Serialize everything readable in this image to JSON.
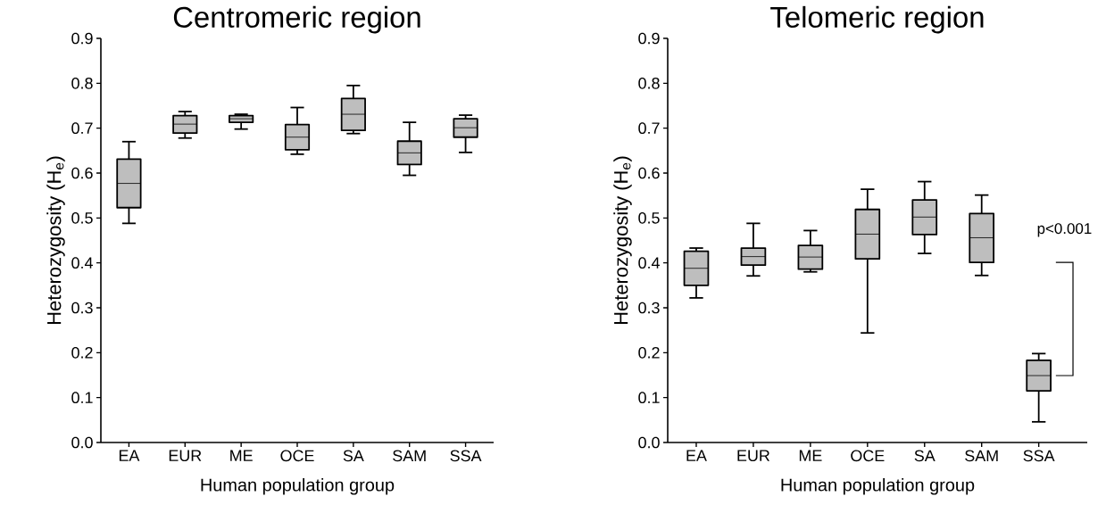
{
  "chart_data": [
    {
      "type": "box",
      "title": "Centromeric region",
      "xlabel": "Human population group",
      "ylabel": "Heterozygosity (H$_{e}$)",
      "categories": [
        "EA",
        "EUR",
        "ME",
        "OCE",
        "SA",
        "SAM",
        "SSA"
      ],
      "ylim": [
        0,
        0.9
      ],
      "yticks": [
        {
          "value": 0,
          "label": "0.0"
        },
        0.1,
        0.2,
        0.3,
        0.4,
        0.5,
        0.6,
        0.7,
        0.8,
        0.9
      ],
      "series": [
        {
          "color": "#bebebe",
          "boxes": [
            {
              "low": 0.488,
              "q1": 0.523,
              "median": 0.577,
              "q3": 0.631,
              "high": 0.67
            },
            {
              "low": 0.678,
              "q1": 0.689,
              "median": 0.709,
              "q3": 0.728,
              "high": 0.737
            },
            {
              "low": 0.698,
              "q1": 0.713,
              "median": 0.721,
              "q3": 0.728,
              "high": 0.731
            },
            {
              "low": 0.642,
              "q1": 0.652,
              "median": 0.68,
              "q3": 0.708,
              "high": 0.746
            },
            {
              "low": 0.688,
              "q1": 0.695,
              "median": 0.731,
              "q3": 0.766,
              "high": 0.795
            },
            {
              "low": 0.595,
              "q1": 0.619,
              "median": 0.645,
              "q3": 0.671,
              "high": 0.713
            },
            {
              "low": 0.646,
              "q1": 0.68,
              "median": 0.701,
              "q3": 0.721,
              "high": 0.729
            }
          ]
        }
      ]
    },
    {
      "type": "box",
      "title": "Telomeric region",
      "xlabel": "Human population group",
      "ylabel": "Heterozygosity (H$_{e}$)",
      "categories": [
        "EA",
        "EUR",
        "ME",
        "OCE",
        "SA",
        "SAM",
        "SSA"
      ],
      "ylim": [
        0,
        0.9
      ],
      "yticks": [
        {
          "value": 0,
          "label": "0.0"
        },
        0.1,
        0.2,
        0.3,
        0.4,
        0.5,
        0.6,
        0.7,
        0.8,
        0.9
      ],
      "annotations": [
        "p<0.001"
      ],
      "series": [
        {
          "color": "#bebebe",
          "boxes": [
            {
              "low": 0.322,
              "q1": 0.35,
              "median": 0.388,
              "q3": 0.426,
              "high": 0.433
            },
            {
              "low": 0.371,
              "q1": 0.395,
              "median": 0.414,
              "q3": 0.433,
              "high": 0.488
            },
            {
              "low": 0.38,
              "q1": 0.386,
              "median": 0.413,
              "q3": 0.439,
              "high": 0.472
            },
            {
              "low": 0.244,
              "q1": 0.409,
              "median": 0.464,
              "q3": 0.519,
              "high": 0.564
            },
            {
              "low": 0.421,
              "q1": 0.463,
              "median": 0.502,
              "q3": 0.54,
              "high": 0.581
            },
            {
              "low": 0.372,
              "q1": 0.401,
              "median": 0.456,
              "q3": 0.51,
              "high": 0.551
            },
            {
              "low": 0.046,
              "q1": 0.115,
              "median": 0.149,
              "q3": 0.183,
              "high": 0.198
            }
          ]
        }
      ]
    }
  ]
}
